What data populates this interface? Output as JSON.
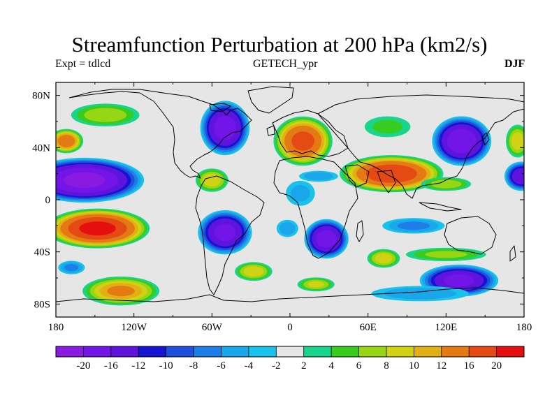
{
  "title": "Streamfunction Perturbation at 200 hPa (km2/s)",
  "subtitle_left": "Expt = tdlcd",
  "subtitle_center": "GETECH_ypr",
  "subtitle_right": "DJF",
  "chart_data": {
    "type": "heatmap",
    "variable": "Streamfunction Perturbation at 200 hPa",
    "units": "km2/s",
    "season": "DJF",
    "x_ticks": [
      "180",
      "120W",
      "60W",
      "0",
      "60E",
      "120E",
      "180"
    ],
    "x_values": [
      -180,
      -120,
      -60,
      0,
      60,
      120,
      180
    ],
    "y_ticks": [
      "80N",
      "40N",
      "0",
      "40S",
      "80S"
    ],
    "y_values": [
      80,
      40,
      0,
      -40,
      -80
    ],
    "xlim": [
      -180,
      180
    ],
    "ylim": [
      -90,
      90
    ],
    "colorbar_labels": [
      "-20",
      "-16",
      "-12",
      "-10",
      "-8",
      "-6",
      "-4",
      "-2",
      "2",
      "4",
      "6",
      "8",
      "10",
      "12",
      "16",
      "20"
    ],
    "levels": [
      -20,
      -16,
      -12,
      -10,
      -8,
      -6,
      -4,
      -2,
      2,
      4,
      6,
      8,
      10,
      12,
      16,
      20
    ],
    "colors": [
      "#8a1ae0",
      "#7315e8",
      "#5f14de",
      "#1414d2",
      "#1e50dc",
      "#1c7ee6",
      "#1aa6ea",
      "#19c2ea",
      "#e6e6e6",
      "#18d48c",
      "#38cc20",
      "#96d614",
      "#d2d214",
      "#e2b014",
      "#e47a14",
      "#e64a14",
      "#e60f0f"
    ],
    "blobs": [
      {
        "lon": -158,
        "lat": 15,
        "rx": 48,
        "ry": 18,
        "value": -21
      },
      {
        "lon": -148,
        "lat": -22,
        "rx": 42,
        "ry": 16,
        "value": 21
      },
      {
        "lon": -130,
        "lat": -70,
        "rx": 32,
        "ry": 12,
        "value": 12
      },
      {
        "lon": -172,
        "lat": 45,
        "rx": 14,
        "ry": 10,
        "value": 14
      },
      {
        "lon": -142,
        "lat": 65,
        "rx": 30,
        "ry": 10,
        "value": 7
      },
      {
        "lon": -168,
        "lat": -52,
        "rx": 12,
        "ry": 6,
        "value": -6
      },
      {
        "lon": -50,
        "lat": 55,
        "rx": 20,
        "ry": 22,
        "value": -18
      },
      {
        "lon": -60,
        "lat": 15,
        "rx": 14,
        "ry": 10,
        "value": 9
      },
      {
        "lon": -50,
        "lat": -25,
        "rx": 22,
        "ry": 18,
        "value": -17
      },
      {
        "lon": -28,
        "lat": -55,
        "rx": 16,
        "ry": 8,
        "value": 9
      },
      {
        "lon": 10,
        "lat": 45,
        "rx": 24,
        "ry": 20,
        "value": 17
      },
      {
        "lon": 8,
        "lat": 5,
        "rx": 14,
        "ry": 12,
        "value": -4
      },
      {
        "lon": -2,
        "lat": -22,
        "rx": 10,
        "ry": 8,
        "value": -5
      },
      {
        "lon": 28,
        "lat": -30,
        "rx": 18,
        "ry": 16,
        "value": -18
      },
      {
        "lon": 22,
        "lat": 18,
        "rx": 18,
        "ry": 5,
        "value": -5
      },
      {
        "lon": 20,
        "lat": -65,
        "rx": 16,
        "ry": 6,
        "value": 8
      },
      {
        "lon": 78,
        "lat": 20,
        "rx": 42,
        "ry": 15,
        "value": 19
      },
      {
        "lon": 75,
        "lat": 56,
        "rx": 22,
        "ry": 10,
        "value": 4
      },
      {
        "lon": 120,
        "lat": 12,
        "rx": 22,
        "ry": 6,
        "value": 7
      },
      {
        "lon": 132,
        "lat": 45,
        "rx": 24,
        "ry": 20,
        "value": -19
      },
      {
        "lon": 95,
        "lat": -20,
        "rx": 28,
        "ry": 7,
        "value": -6
      },
      {
        "lon": 72,
        "lat": -45,
        "rx": 14,
        "ry": 8,
        "value": 9
      },
      {
        "lon": 120,
        "lat": -42,
        "rx": 36,
        "ry": 6,
        "value": 6
      },
      {
        "lon": 130,
        "lat": -62,
        "rx": 32,
        "ry": 13,
        "value": -17
      },
      {
        "lon": 100,
        "lat": -72,
        "rx": 45,
        "ry": 7,
        "value": -5
      },
      {
        "lon": 178,
        "lat": 18,
        "rx": 14,
        "ry": 12,
        "value": -15
      },
      {
        "lon": 175,
        "lat": 45,
        "rx": 10,
        "ry": 14,
        "value": 9
      }
    ]
  }
}
